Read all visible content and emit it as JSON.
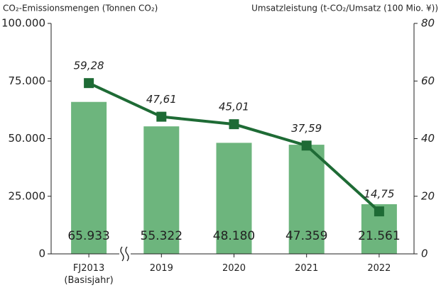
{
  "chart_data": {
    "type": "bar",
    "y_label": "CO₂-Emissionsmengen (Tonnen CO₂)",
    "y2_label": "Umsatzleistung (t-CO₂/Umsatz (100 Mio. ¥))",
    "categories": [
      "FJ2013 (Basisjahr)",
      "2019",
      "2020",
      "2021",
      "2022"
    ],
    "series": [
      {
        "type": "bar",
        "color": "#6db57d",
        "values": [
          65933,
          55322,
          48180,
          47359,
          21561
        ],
        "value_labels": [
          "65.933",
          "55.322",
          "48.180",
          "47.359",
          "21.561"
        ]
      },
      {
        "type": "line",
        "axis": "y2",
        "color": "#1e6b35",
        "values": [
          59.28,
          47.61,
          45.01,
          37.59,
          14.75
        ],
        "value_labels": [
          "59,28",
          "47,61",
          "45,01",
          "37,59",
          "14,75"
        ]
      }
    ],
    "ylim": [
      0,
      100000
    ],
    "yticks": [
      {
        "value": 0,
        "label": "0"
      },
      {
        "value": 25000,
        "label": "25.000"
      },
      {
        "value": 50000,
        "label": "50.000"
      },
      {
        "value": 75000,
        "label": "75.000"
      },
      {
        "value": 100000,
        "label": "100.000"
      }
    ],
    "y2lim": [
      0,
      80
    ],
    "y2ticks": [
      0,
      20,
      40,
      60,
      80
    ]
  }
}
